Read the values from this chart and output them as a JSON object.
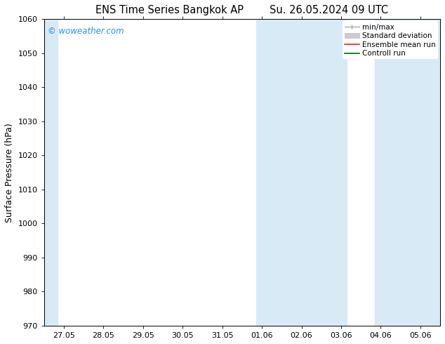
{
  "title_left": "ENS Time Series Bangkok AP",
  "title_right": "Su. 26.05.2024 09 UTC",
  "ylabel": "Surface Pressure (hPa)",
  "ylim": [
    970,
    1060
  ],
  "yticks": [
    970,
    980,
    990,
    1000,
    1010,
    1020,
    1030,
    1040,
    1050,
    1060
  ],
  "xtick_labels": [
    "27.05",
    "28.05",
    "29.05",
    "30.05",
    "31.05",
    "01.06",
    "02.06",
    "03.06",
    "04.06",
    "05.06"
  ],
  "bg_color": "#ffffff",
  "plot_bg_color": "#ffffff",
  "shaded_color": "#d8eaf5",
  "watermark": "© woweather.com",
  "watermark_color": "#1e90ff",
  "legend_items": [
    {
      "label": "min/max",
      "color": "#aaaaaa",
      "lw": 1.0
    },
    {
      "label": "Standard deviation",
      "color": "#cccccc",
      "lw": 8
    },
    {
      "label": "Ensemble mean run",
      "color": "#ff0000",
      "lw": 1.5
    },
    {
      "label": "Controll run",
      "color": "#008000",
      "lw": 1.5
    }
  ],
  "tick_color": "#000000",
  "spine_color": "#000000",
  "title_fontsize": 10.5,
  "ylabel_fontsize": 9,
  "tick_fontsize": 8,
  "legend_fontsize": 7.5,
  "watermark_fontsize": 8.5
}
